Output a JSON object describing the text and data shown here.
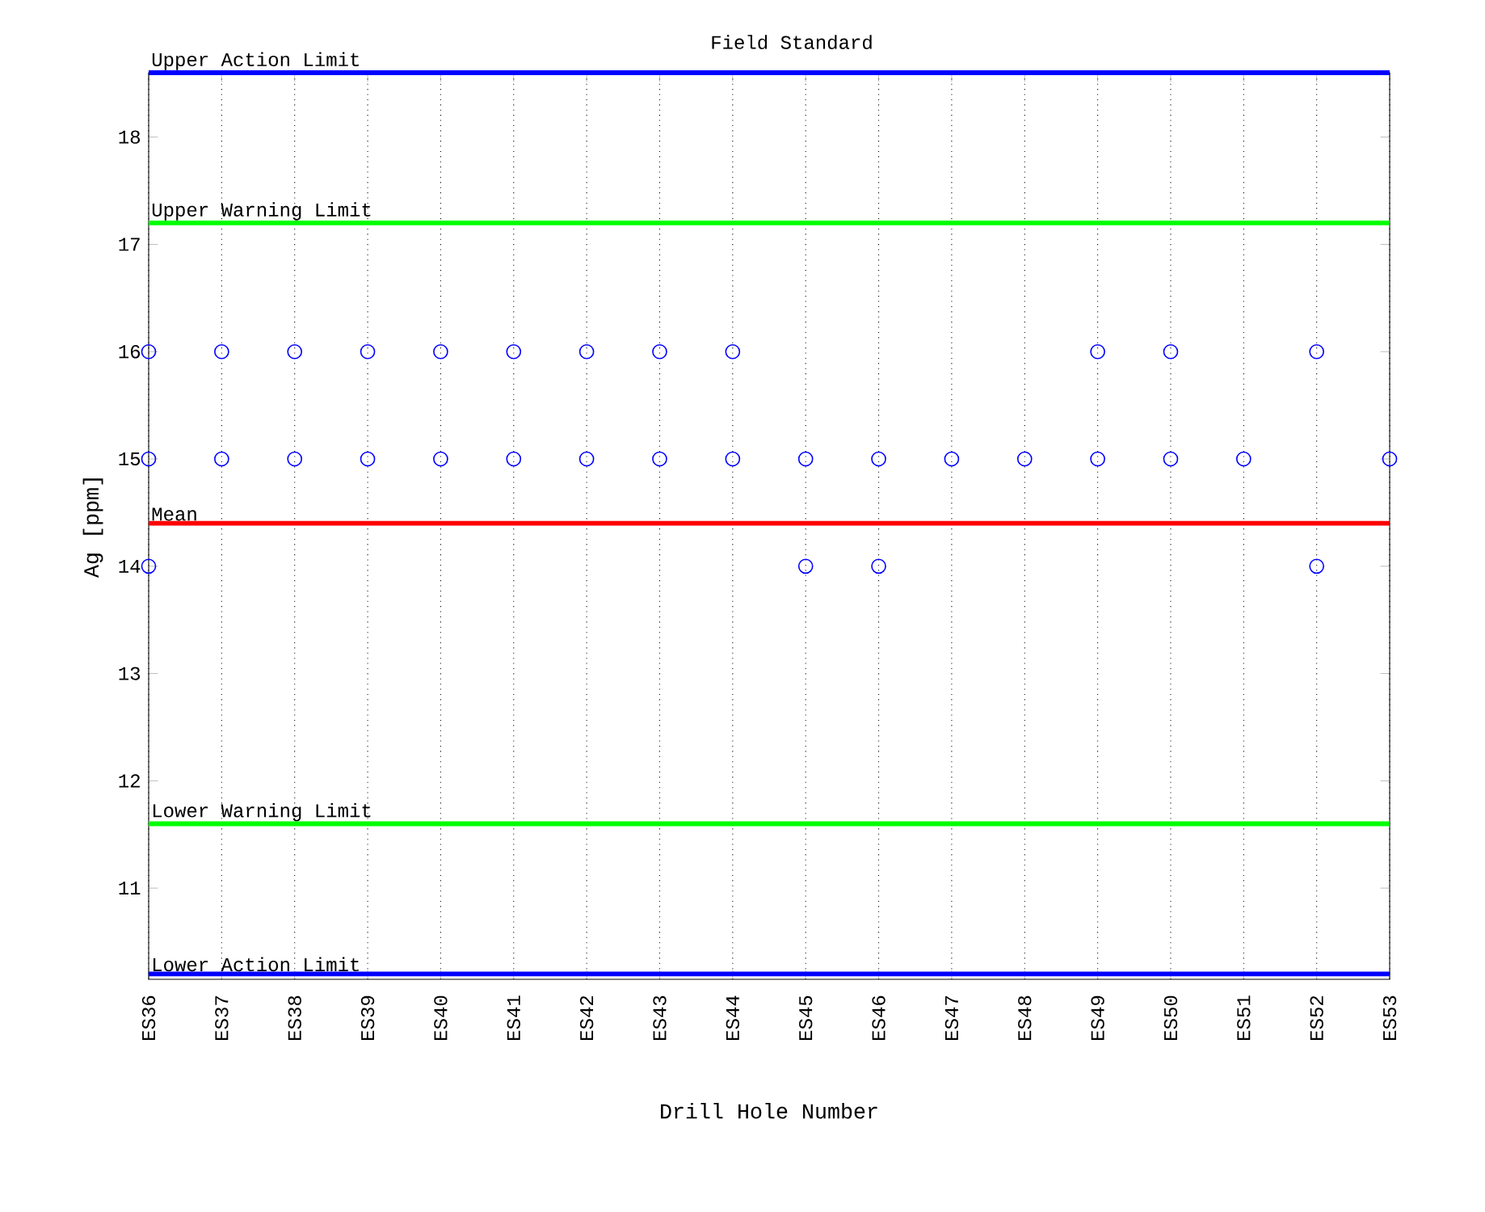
{
  "chart_data": {
    "type": "scatter",
    "title": "Field Standard",
    "xlabel": "Drill Hole Number",
    "ylabel": "Ag [ppm]",
    "categories": [
      "ES36",
      "ES37",
      "ES38",
      "ES39",
      "ES40",
      "ES41",
      "ES42",
      "ES43",
      "ES44",
      "ES45",
      "ES46",
      "ES47",
      "ES48",
      "ES49",
      "ES50",
      "ES51",
      "ES52",
      "ES53"
    ],
    "series": [
      {
        "color": "#0000ff",
        "values": [
          16,
          16,
          16,
          16,
          16,
          16,
          16,
          16,
          16,
          null,
          null,
          null,
          null,
          16,
          16,
          null,
          16,
          null
        ]
      },
      {
        "color": "#0000ff",
        "values": [
          15,
          15,
          15,
          15,
          15,
          15,
          15,
          15,
          15,
          15,
          15,
          15,
          15,
          15,
          15,
          15,
          null,
          15
        ]
      },
      {
        "color": "#0000ff",
        "values": [
          14,
          null,
          null,
          null,
          null,
          null,
          null,
          null,
          null,
          14,
          14,
          null,
          null,
          null,
          null,
          null,
          14,
          null
        ]
      }
    ],
    "marker": "circle",
    "ylim": [
      10.15,
      18.6
    ],
    "yticks": [
      11,
      12,
      13,
      14,
      15,
      16,
      17,
      18
    ],
    "grid": "x",
    "ref_lines": [
      {
        "axis": "y",
        "value": 18.6,
        "label": "Upper Action Limit",
        "color": "#0000ff"
      },
      {
        "axis": "y",
        "value": 17.2,
        "label": "Upper Warning Limit",
        "color": "#00ff00"
      },
      {
        "axis": "y",
        "value": 14.4,
        "label": "Mean",
        "color": "#ff0000"
      },
      {
        "axis": "y",
        "value": 11.6,
        "label": "Lower Warning Limit",
        "color": "#00ff00"
      },
      {
        "axis": "y",
        "value": 10.2,
        "label": "Lower Action Limit",
        "color": "#0000ff"
      }
    ]
  }
}
